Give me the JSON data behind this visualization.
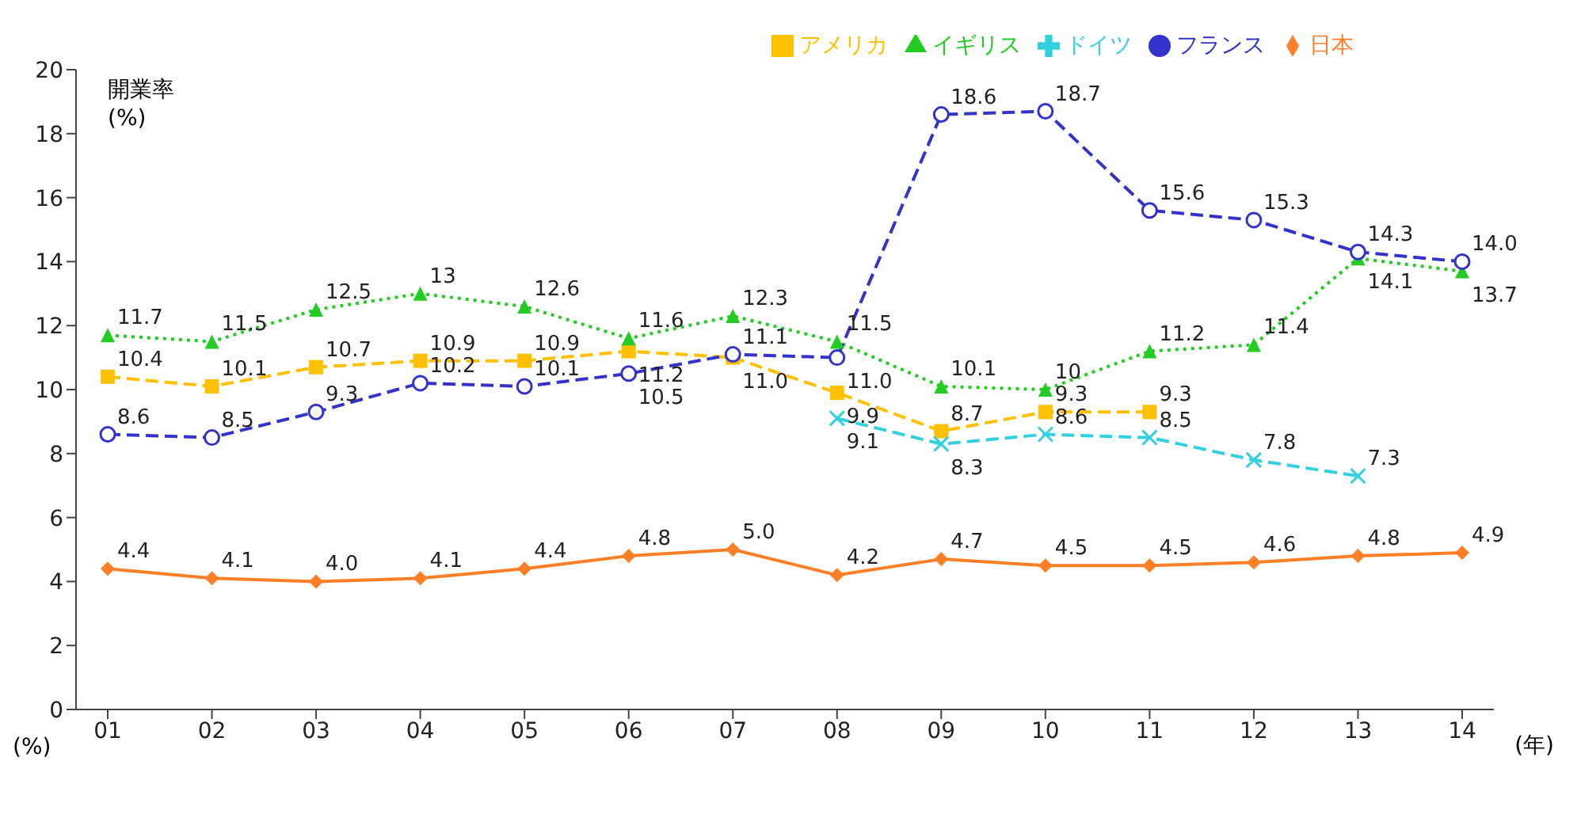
{
  "chart_data": {
    "type": "line",
    "categories": [
      "01",
      "02",
      "03",
      "04",
      "05",
      "06",
      "07",
      "08",
      "09",
      "10",
      "11",
      "12",
      "13",
      "14"
    ],
    "ylabel": "開業率\n(%)",
    "xlabel": "(年)",
    "annotations": [
      "(%)"
    ],
    "ylim": [
      0,
      20
    ],
    "yticks": [
      0,
      2,
      4,
      6,
      8,
      10,
      12,
      14,
      16,
      18,
      20
    ],
    "grid": false,
    "legend": "top",
    "series": [
      {
        "name": "日本",
        "color": "#ff7f27",
        "marker": "diamond",
        "line_style": "solid",
        "values": [
          4.4,
          4.1,
          4.0,
          4.1,
          4.4,
          4.8,
          5.0,
          4.2,
          4.7,
          4.5,
          4.5,
          4.6,
          4.8,
          4.9
        ],
        "value_labels": [
          "4.4",
          "4.1",
          "4.0",
          "4.1",
          "4.4",
          "4.8",
          "5.0",
          "4.2",
          "4.7",
          "4.5",
          "4.5",
          "4.6",
          "4.8",
          "4.9"
        ]
      },
      {
        "name": "アメリカ",
        "color": "#ffc000",
        "marker": "square",
        "line_style": "dashed",
        "values": [
          10.4,
          10.1,
          10.7,
          10.9,
          10.9,
          11.2,
          11.0,
          9.9,
          8.7,
          9.3,
          9.3,
          null,
          null,
          null
        ],
        "value_labels": [
          "10.4",
          "10.1",
          "10.7",
          "10.9",
          "10.9",
          "11.2",
          "11.0",
          "9.9",
          "8.7",
          "9.3",
          "9.3",
          null,
          null,
          null
        ]
      },
      {
        "name": "イギリス",
        "color": "#22cc22",
        "marker": "triangle",
        "line_style": "dotted",
        "values": [
          11.7,
          11.5,
          12.5,
          13,
          12.6,
          11.6,
          12.3,
          11.5,
          10.1,
          10,
          11.2,
          11.4,
          14.1,
          13.7
        ],
        "value_labels": [
          "11.7",
          "11.5",
          "12.5",
          "13",
          "12.6",
          "11.6",
          "12.3",
          "11.5",
          "10.1",
          "10",
          "11.2",
          "11.4",
          "14.1",
          "13.7"
        ]
      },
      {
        "name": "ドイツ",
        "color": "#33d0e0",
        "marker": "cross",
        "line_style": "dashed",
        "values": [
          null,
          null,
          null,
          null,
          null,
          null,
          null,
          9.1,
          8.3,
          8.6,
          8.5,
          7.8,
          7.3,
          null
        ],
        "value_labels": [
          null,
          null,
          null,
          null,
          null,
          null,
          null,
          "9.1",
          "8.3",
          "8.6",
          "8.5",
          "7.8",
          "7.3",
          null
        ]
      },
      {
        "name": "フランス",
        "color": "#3333cc",
        "marker": "circle",
        "line_style": "dashed",
        "values": [
          8.6,
          8.5,
          9.3,
          10.2,
          10.1,
          10.5,
          11.1,
          11.0,
          18.6,
          18.7,
          15.6,
          15.3,
          14.3,
          14.0
        ],
        "value_labels": [
          "8.6",
          "8.5",
          "9.3",
          "10.2",
          "10.1",
          "10.5",
          "11.1",
          "11.0",
          "18.6",
          "18.7",
          "15.6",
          "15.3",
          "14.3",
          "14.0"
        ]
      }
    ]
  }
}
